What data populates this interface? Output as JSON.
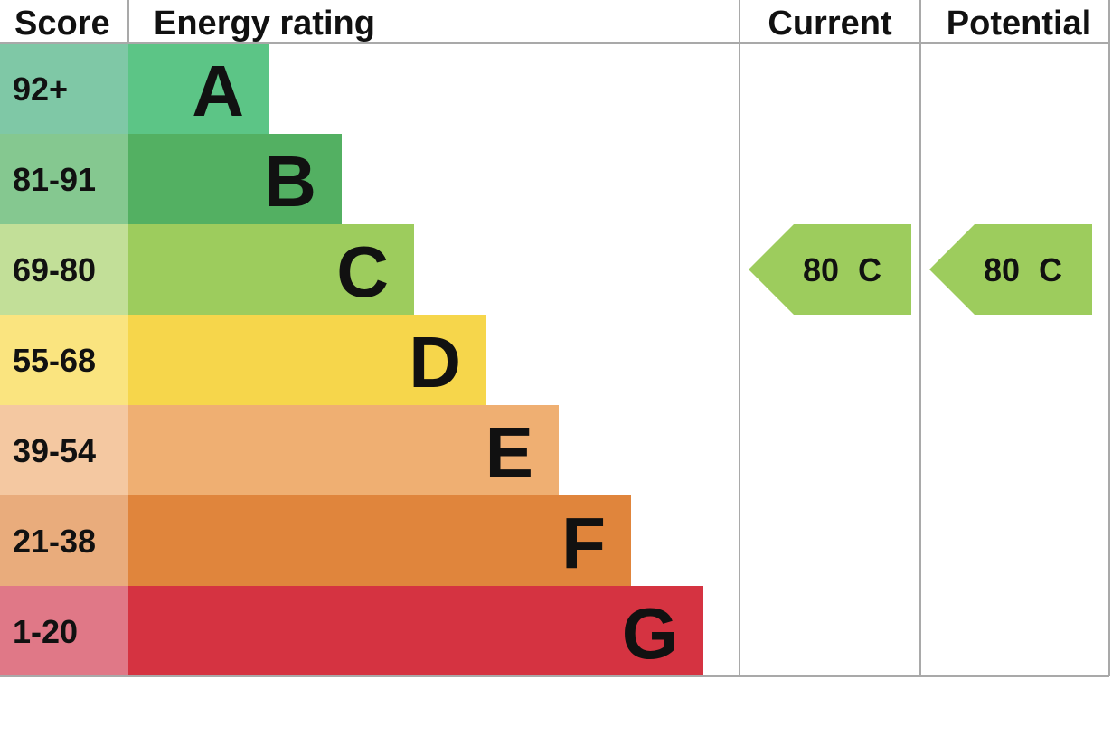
{
  "chart_data": {
    "type": "bar",
    "headers": {
      "score": "Score",
      "rating": "Energy rating",
      "current": "Current",
      "potential": "Potential"
    },
    "bands": [
      {
        "letter": "A",
        "range": "92+",
        "color": "#5cc586",
        "score_color": "#7fc8a6"
      },
      {
        "letter": "B",
        "range": "81-91",
        "color": "#53b062",
        "score_color": "#85c890"
      },
      {
        "letter": "C",
        "range": "69-80",
        "color": "#9dcc5d",
        "score_color": "#c2df98"
      },
      {
        "letter": "D",
        "range": "55-68",
        "color": "#f6d64b",
        "score_color": "#fae47f"
      },
      {
        "letter": "E",
        "range": "39-54",
        "color": "#efaf72",
        "score_color": "#f4c8a1"
      },
      {
        "letter": "F",
        "range": "21-38",
        "color": "#e0853c",
        "score_color": "#e9ac7c"
      },
      {
        "letter": "G",
        "range": "1-20",
        "color": "#d53341",
        "score_color": "#e07887"
      }
    ],
    "current": {
      "value": 80,
      "letter": "C",
      "color": "#9dcc5d"
    },
    "potential": {
      "value": 80,
      "letter": "C",
      "color": "#9dcc5d"
    }
  }
}
